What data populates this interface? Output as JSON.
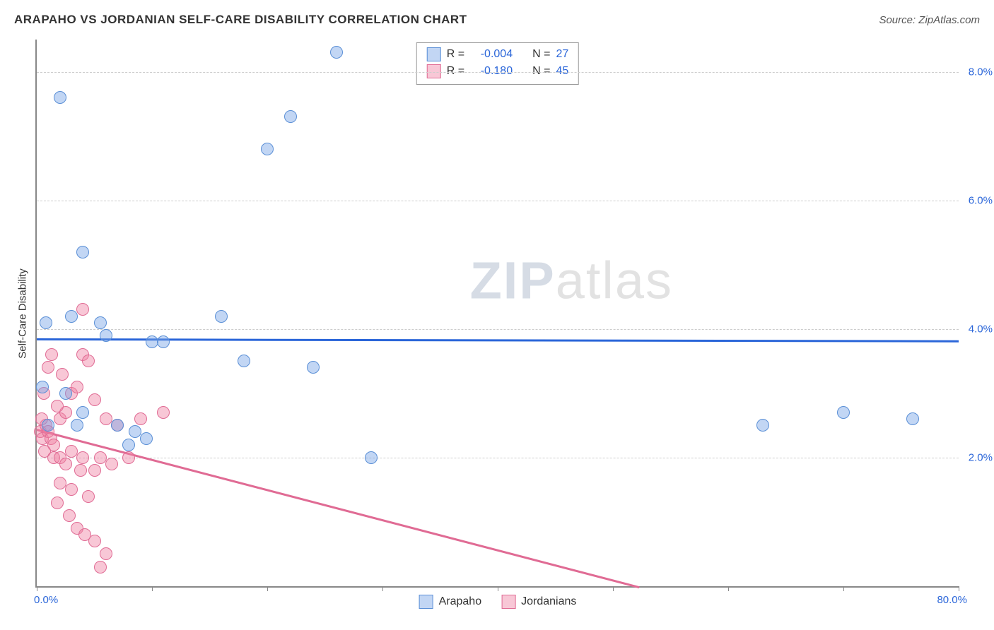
{
  "title": "ARAPAHO VS JORDANIAN SELF-CARE DISABILITY CORRELATION CHART",
  "source_label": "Source: ZipAtlas.com",
  "watermark": {
    "part1": "ZIP",
    "part2": "atlas"
  },
  "y_axis": {
    "title": "Self-Care Disability",
    "min": 0.0,
    "max": 8.5,
    "gridlines": [
      2.0,
      4.0,
      6.0,
      8.0
    ],
    "tick_labels": [
      "2.0%",
      "4.0%",
      "6.0%",
      "8.0%"
    ],
    "label_color": "#2b66d9"
  },
  "x_axis": {
    "min": 0.0,
    "max": 80.0,
    "ticks": [
      0,
      10,
      20,
      30,
      40,
      50,
      60,
      70,
      80
    ],
    "min_label": "0.0%",
    "max_label": "80.0%",
    "label_color": "#2b66d9"
  },
  "legend_bottom": {
    "series1": "Arapaho",
    "series2": "Jordanians"
  },
  "legend_top": {
    "rows": [
      {
        "swatch": "arapaho",
        "r_label": "R =",
        "r_value": "-0.004",
        "n_label": "N =",
        "n_value": "27"
      },
      {
        "swatch": "jordanian",
        "r_label": "R =",
        "r_value": "-0.180",
        "n_label": "N =",
        "n_value": "45"
      }
    ],
    "text_color": "#333",
    "value_color": "#2b66d9"
  },
  "series": {
    "arapaho": {
      "color_fill": "rgba(120,165,230,0.45)",
      "color_stroke": "#5a8fd6",
      "marker_radius_px": 9,
      "trend": {
        "y_at_x0": 3.85,
        "y_at_xmax": 3.82,
        "color": "#2b66d9"
      },
      "points": [
        [
          2.0,
          7.6
        ],
        [
          4.0,
          5.2
        ],
        [
          26.0,
          8.3
        ],
        [
          22.0,
          7.3
        ],
        [
          20.0,
          6.8
        ],
        [
          0.8,
          4.1
        ],
        [
          3.0,
          4.2
        ],
        [
          5.5,
          4.1
        ],
        [
          16.0,
          4.2
        ],
        [
          0.5,
          3.1
        ],
        [
          2.5,
          3.0
        ],
        [
          4.0,
          2.7
        ],
        [
          1.0,
          2.5
        ],
        [
          3.5,
          2.5
        ],
        [
          7.0,
          2.5
        ],
        [
          8.5,
          2.4
        ],
        [
          10.0,
          3.8
        ],
        [
          11.0,
          3.8
        ],
        [
          6.0,
          3.9
        ],
        [
          18.0,
          3.5
        ],
        [
          24.0,
          3.4
        ],
        [
          29.0,
          2.0
        ],
        [
          8.0,
          2.2
        ],
        [
          9.5,
          2.3
        ],
        [
          63.0,
          2.5
        ],
        [
          70.0,
          2.7
        ],
        [
          76.0,
          2.6
        ]
      ]
    },
    "jordanian": {
      "color_fill": "rgba(240,130,165,0.45)",
      "color_stroke": "#e06b94",
      "marker_radius_px": 9,
      "trend": {
        "y_at_x0": 2.45,
        "y_at_xmax": -1.3,
        "color": "#e06b94"
      },
      "points": [
        [
          0.3,
          2.4
        ],
        [
          0.5,
          2.3
        ],
        [
          0.8,
          2.5
        ],
        [
          1.0,
          2.4
        ],
        [
          1.2,
          2.3
        ],
        [
          1.5,
          2.2
        ],
        [
          0.4,
          2.6
        ],
        [
          2.0,
          2.6
        ],
        [
          2.5,
          2.7
        ],
        [
          1.8,
          2.8
        ],
        [
          3.0,
          3.0
        ],
        [
          3.5,
          3.1
        ],
        [
          4.0,
          3.6
        ],
        [
          4.5,
          3.5
        ],
        [
          2.2,
          3.3
        ],
        [
          1.0,
          3.4
        ],
        [
          1.3,
          3.6
        ],
        [
          4.0,
          4.3
        ],
        [
          0.6,
          3.0
        ],
        [
          5.0,
          2.9
        ],
        [
          6.0,
          2.6
        ],
        [
          7.0,
          2.5
        ],
        [
          9.0,
          2.6
        ],
        [
          11.0,
          2.7
        ],
        [
          8.0,
          2.0
        ],
        [
          0.7,
          2.1
        ],
        [
          1.5,
          2.0
        ],
        [
          2.0,
          2.0
        ],
        [
          3.0,
          2.1
        ],
        [
          4.0,
          2.0
        ],
        [
          5.5,
          2.0
        ],
        [
          6.5,
          1.9
        ],
        [
          2.5,
          1.9
        ],
        [
          3.8,
          1.8
        ],
        [
          5.0,
          1.8
        ],
        [
          2.0,
          1.6
        ],
        [
          3.0,
          1.5
        ],
        [
          4.5,
          1.4
        ],
        [
          1.8,
          1.3
        ],
        [
          2.8,
          1.1
        ],
        [
          3.5,
          0.9
        ],
        [
          5.0,
          0.7
        ],
        [
          6.0,
          0.5
        ],
        [
          4.2,
          0.8
        ],
        [
          5.5,
          0.3
        ]
      ]
    }
  }
}
